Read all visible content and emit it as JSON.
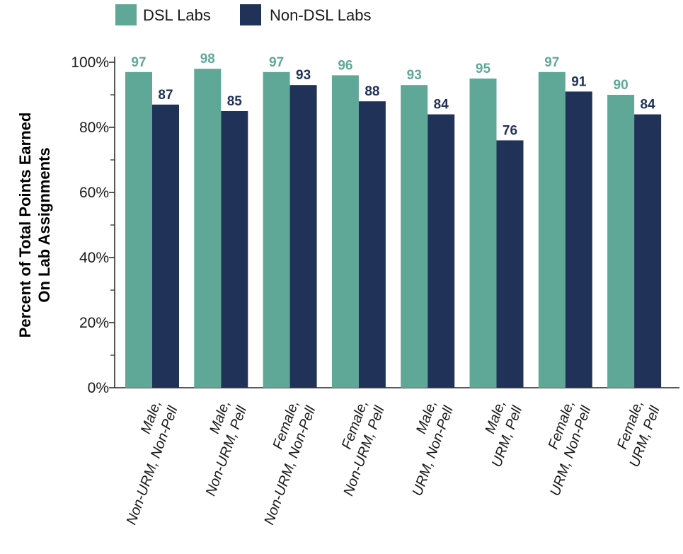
{
  "chart_data": {
    "type": "bar",
    "ylabel": [
      "Percent of Total Points Earned",
      "On Lab Assignments"
    ],
    "ylim": [
      0,
      100
    ],
    "yticks": [
      0,
      20,
      40,
      60,
      80,
      100
    ],
    "ytick_labels": [
      "0%",
      "20%",
      "40%",
      "60%",
      "80%",
      "100%"
    ],
    "grid": false,
    "legend_position": "top-left",
    "categories": [
      [
        "Male,",
        "Non-URM, Non-Pell"
      ],
      [
        "Male,",
        "Non-URM, Pell"
      ],
      [
        "Female,",
        "Non-URM, Non-Pell"
      ],
      [
        "Female,",
        "Non-URM, Pell"
      ],
      [
        "Male,",
        "URM, Non-Pell"
      ],
      [
        "Male,",
        "URM, Pell"
      ],
      [
        "Female,",
        "URM, Non-Pell"
      ],
      [
        "Female,",
        "URM, Pell"
      ]
    ],
    "series": [
      {
        "name": "DSL Labs",
        "color": "#5fa898",
        "label_color": "#5fa898",
        "values": [
          97,
          98,
          97,
          96,
          93,
          95,
          97,
          90
        ]
      },
      {
        "name": "Non-DSL Labs",
        "color": "#213259",
        "label_color": "#213259",
        "values": [
          87,
          85,
          93,
          88,
          84,
          76,
          91,
          84
        ]
      }
    ]
  }
}
